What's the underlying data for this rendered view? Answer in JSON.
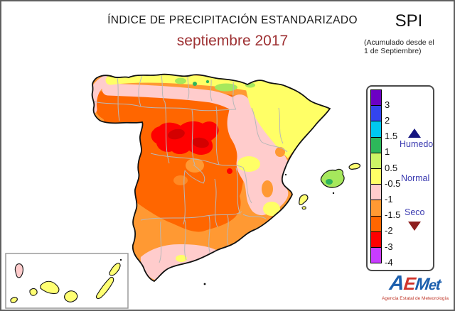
{
  "header": {
    "title": "ÍNDICE DE PRECIPITACIÓN ESTANDARIZADO",
    "subtitle": "septiembre 2017",
    "subtitle_color": "#9e3133"
  },
  "spi": {
    "label": "SPI",
    "note_line1": "(Acumulado desde el",
    "note_line2": "1 de Septiembre)"
  },
  "legend": {
    "entries": [
      {
        "color": "#6c00c4",
        "tick": "3"
      },
      {
        "color": "#3344ee",
        "tick": "2"
      },
      {
        "color": "#00c8f0",
        "tick": "1.5"
      },
      {
        "color": "#2db85a",
        "tick": "1"
      },
      {
        "color": "#ccf566",
        "tick": "0.5"
      },
      {
        "color": "#ffff66",
        "tick": "-0.5"
      },
      {
        "color": "#ffcccc",
        "tick": "-1"
      },
      {
        "color": "#ff9933",
        "tick": "-1.5"
      },
      {
        "color": "#ff6600",
        "tick": "-2"
      },
      {
        "color": "#ff0000",
        "tick": "-3"
      },
      {
        "color": "#c83cff",
        "tick": "-4"
      }
    ],
    "humedo_label": "Humedo",
    "normal_label": "Normal",
    "seco_label": "Seco",
    "humedo_color": "#151580",
    "seco_color": "#8e1f1f"
  },
  "logo": {
    "letters": [
      {
        "ch": "A",
        "color": "#1c5fad"
      },
      {
        "ch": "E",
        "color": "#d0342c"
      },
      {
        "ch": "M",
        "color": "#1c5fad"
      },
      {
        "ch": "e",
        "color": "#1c5fad"
      },
      {
        "ch": "t",
        "color": "#1c5fad"
      }
    ],
    "tagline": "Agencia Estatal de Meteorología"
  }
}
